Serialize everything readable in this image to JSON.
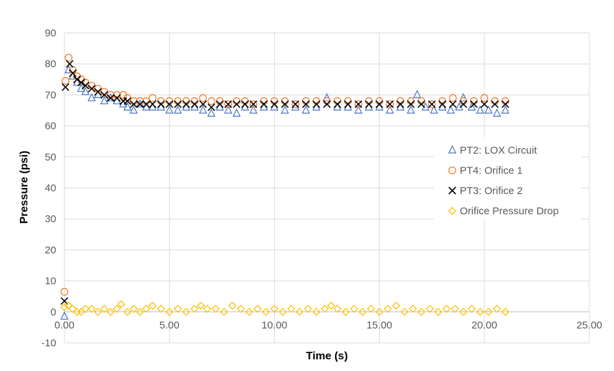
{
  "chart_data": {
    "type": "scatter",
    "title": "",
    "xlabel": "Time (s)",
    "ylabel": "Pressure (psi)",
    "xlim": [
      0,
      25
    ],
    "ylim": [
      -10,
      90
    ],
    "x_ticks": [
      "0.00",
      "5.00",
      "10.00",
      "15.00",
      "20.00",
      "25.00"
    ],
    "y_ticks": [
      "-10",
      "0",
      "10",
      "20",
      "30",
      "40",
      "50",
      "60",
      "70",
      "80",
      "90"
    ],
    "grid": true,
    "legend_position": "right",
    "series": [
      {
        "name": "PT2: LOX Circuit",
        "marker": "triangle",
        "color": "#4472C4",
        "x": [
          0.0,
          0.2,
          0.4,
          0.6,
          0.8,
          1.0,
          1.3,
          1.6,
          1.9,
          2.2,
          2.5,
          2.8,
          3.0,
          3.3,
          3.6,
          3.9,
          4.2,
          4.6,
          5.0,
          5.4,
          5.8,
          6.2,
          6.6,
          7.0,
          7.4,
          7.8,
          8.2,
          8.6,
          9.0,
          9.5,
          10.0,
          10.5,
          11.0,
          11.5,
          12.0,
          12.5,
          13.0,
          13.5,
          14.0,
          14.5,
          15.0,
          15.5,
          16.0,
          16.5,
          16.8,
          17.2,
          17.6,
          18.0,
          18.4,
          18.8,
          19.0,
          19.4,
          19.8,
          20.2,
          20.6,
          21.0
        ],
        "y": [
          -1.5,
          78,
          76,
          74,
          72,
          71,
          69,
          70,
          68,
          69,
          68,
          67,
          66,
          65,
          67,
          66,
          66,
          66,
          65,
          65,
          66,
          66,
          65,
          64,
          66,
          65,
          64,
          66,
          65,
          66,
          66,
          65,
          66,
          65,
          66,
          69,
          66,
          66,
          65,
          66,
          66,
          65,
          66,
          65,
          70,
          66,
          65,
          66,
          65,
          66,
          69,
          66,
          65,
          65,
          64,
          65
        ]
      },
      {
        "name": "PT4: Orifice 1",
        "marker": "circle",
        "color": "#ED7D31",
        "x": [
          0.0,
          0.05,
          0.2,
          0.4,
          0.6,
          0.8,
          1.0,
          1.3,
          1.6,
          1.9,
          2.2,
          2.5,
          2.8,
          3.0,
          3.3,
          3.6,
          3.9,
          4.2,
          4.6,
          5.0,
          5.4,
          5.8,
          6.2,
          6.6,
          7.0,
          7.4,
          7.8,
          8.2,
          8.6,
          9.0,
          9.5,
          10.0,
          10.5,
          11.0,
          11.5,
          12.0,
          12.5,
          13.0,
          13.5,
          14.0,
          14.5,
          15.0,
          15.5,
          16.0,
          16.5,
          17.0,
          17.5,
          18.0,
          18.5,
          19.0,
          19.5,
          20.0,
          20.5,
          21.0
        ],
        "y": [
          6.5,
          74.5,
          82,
          78,
          76,
          75,
          74,
          73,
          72,
          71,
          70,
          70,
          70,
          69,
          68,
          68,
          68,
          69,
          68,
          68,
          68,
          68,
          68,
          69,
          68,
          68,
          67,
          68,
          68,
          67,
          68,
          68,
          68,
          67,
          68,
          68,
          68,
          68,
          68,
          67,
          68,
          68,
          67,
          68,
          68,
          68,
          67,
          68,
          69,
          68,
          68,
          69,
          68,
          68
        ]
      },
      {
        "name": "PT3: Orifice 2",
        "marker": "x",
        "color": "#000000",
        "x": [
          0.0,
          0.05,
          0.25,
          0.4,
          0.6,
          0.8,
          1.0,
          1.3,
          1.6,
          1.9,
          2.2,
          2.5,
          2.8,
          3.0,
          3.3,
          3.6,
          3.9,
          4.2,
          4.6,
          5.0,
          5.4,
          5.8,
          6.2,
          6.6,
          7.0,
          7.4,
          7.8,
          8.2,
          8.6,
          9.0,
          9.5,
          10.0,
          10.5,
          11.0,
          11.5,
          12.0,
          12.5,
          13.0,
          13.5,
          14.0,
          14.5,
          15.0,
          15.5,
          16.0,
          16.5,
          17.0,
          17.5,
          18.0,
          18.5,
          19.0,
          19.5,
          20.0,
          20.5,
          21.0
        ],
        "y": [
          3.5,
          72.5,
          80,
          77,
          75,
          74,
          73,
          72,
          71,
          70,
          69,
          69,
          68,
          68,
          67,
          67,
          67,
          67,
          67,
          67,
          67,
          67,
          67,
          67,
          66,
          67,
          67,
          67,
          67,
          67,
          67,
          67,
          67,
          67,
          67,
          67,
          67,
          67,
          67,
          67,
          67,
          67,
          67,
          67,
          67,
          67,
          67,
          67,
          67,
          67,
          67,
          67,
          67,
          67
        ]
      },
      {
        "name": "Orifice Pressure Drop",
        "marker": "diamond",
        "color": "#FFC000",
        "x": [
          0.0,
          0.2,
          0.4,
          0.6,
          0.8,
          1.0,
          1.3,
          1.6,
          1.9,
          2.2,
          2.5,
          2.7,
          3.0,
          3.3,
          3.6,
          3.9,
          4.2,
          4.6,
          5.0,
          5.4,
          5.8,
          6.2,
          6.5,
          6.8,
          7.2,
          7.6,
          8.0,
          8.4,
          8.8,
          9.2,
          9.6,
          10.0,
          10.4,
          10.8,
          11.2,
          11.6,
          12.0,
          12.4,
          12.7,
          13.0,
          13.4,
          13.8,
          14.2,
          14.6,
          15.0,
          15.4,
          15.8,
          16.2,
          16.6,
          17.0,
          17.4,
          17.8,
          18.2,
          18.6,
          19.0,
          19.4,
          19.8,
          20.2,
          20.6,
          21.0
        ],
        "y": [
          1.5,
          2,
          1,
          0,
          0,
          1,
          1,
          0,
          1,
          0,
          1,
          2.5,
          0,
          1,
          0,
          1,
          2,
          1,
          0,
          1,
          0,
          1,
          2,
          1,
          1,
          0,
          2,
          1,
          0,
          1,
          0,
          1,
          0,
          1,
          0,
          1,
          0,
          1,
          2,
          1,
          0,
          1,
          0,
          1,
          0,
          1,
          2,
          0,
          1,
          0,
          1,
          0,
          1,
          1,
          0,
          1,
          0,
          0,
          1,
          0
        ]
      }
    ]
  }
}
